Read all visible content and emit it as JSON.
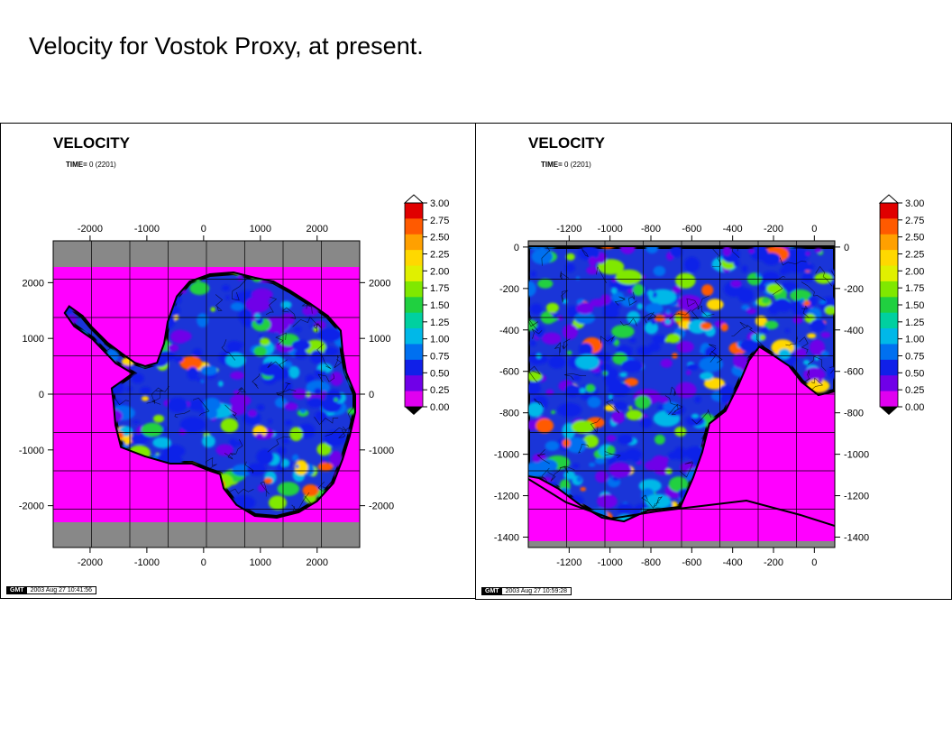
{
  "slide": {
    "title": "Velocity for Vostok Proxy, at present."
  },
  "panels": [
    {
      "title": "VELOCITY",
      "time_label": "TIME=",
      "time_value": "0 (2201)",
      "gmt_label": "GMT",
      "stamp": "2003 Aug 27 10:41:56"
    },
    {
      "title": "VELOCITY",
      "time_label": "TIME=",
      "time_value": "0 (2201)",
      "gmt_label": "GMT",
      "stamp": "2003 Aug 27 10:59:28"
    }
  ],
  "colors": {
    "background_pad": "#ff00ff",
    "frame_gray": "#888888",
    "coast": "#000000"
  },
  "chart_data": [
    {
      "type": "heatmap",
      "title": "VELOCITY",
      "subtitle": "TIME= 0 (2201)",
      "x_ticks": [
        -2000,
        -1000,
        0,
        1000,
        2000
      ],
      "y_ticks": [
        2000,
        1000,
        0,
        -1000,
        -2000
      ],
      "xlim": [
        -2650,
        2750
      ],
      "ylim": [
        -2750,
        2750
      ],
      "colorbar": {
        "ticks": [
          "3.00",
          "2.75",
          "2.50",
          "2.25",
          "2.00",
          "1.75",
          "1.50",
          "1.25",
          "1.00",
          "0.75",
          "0.50",
          "0.25",
          "0.00"
        ],
        "colors": [
          "#e00000",
          "#ff5a00",
          "#ffa000",
          "#ffd800",
          "#e0f000",
          "#80e800",
          "#20d040",
          "#00d0a0",
          "#00b8e8",
          "#0070f0",
          "#1020e8",
          "#7000e8",
          "#e000f0"
        ]
      },
      "legend": "right"
    },
    {
      "type": "heatmap",
      "title": "VELOCITY",
      "subtitle": "TIME= 0 (2201)",
      "x_ticks": [
        -1200,
        -1000,
        -800,
        -600,
        -400,
        -200,
        0
      ],
      "y_ticks": [
        0,
        -200,
        -400,
        -600,
        -800,
        -1000,
        -1200,
        -1400
      ],
      "xlim": [
        -1400,
        100
      ],
      "ylim": [
        -1450,
        30
      ],
      "colorbar": {
        "ticks": [
          "3.00",
          "2.75",
          "2.50",
          "2.25",
          "2.00",
          "1.75",
          "1.50",
          "1.25",
          "1.00",
          "0.75",
          "0.50",
          "0.25",
          "0.00"
        ],
        "colors": [
          "#e00000",
          "#ff5a00",
          "#ffa000",
          "#ffd800",
          "#e0f000",
          "#80e800",
          "#20d040",
          "#00d0a0",
          "#00b8e8",
          "#0070f0",
          "#1020e8",
          "#7000e8",
          "#e000f0"
        ]
      },
      "legend": "right"
    }
  ]
}
